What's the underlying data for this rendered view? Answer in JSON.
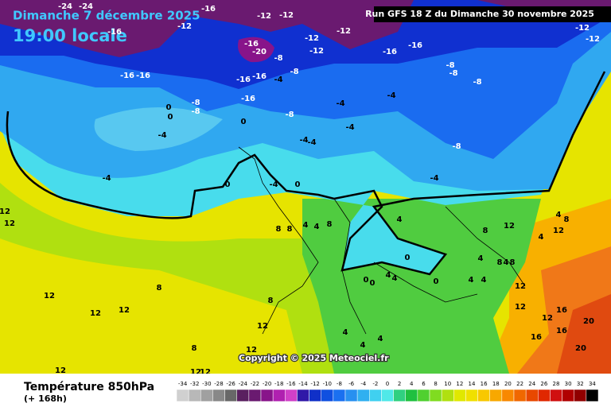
{
  "header": {
    "title": "Dimanche 7 décembre 2025",
    "time": "19:00 locale",
    "run": "Run GFS 18 Z du Dimanche 30 novembre 2025"
  },
  "footer": {
    "title": "Température 850hPa",
    "subtitle": "(+ 168h)",
    "copyright": "Copyright © 2025 Meteociel.fr"
  },
  "legend": {
    "labels": [
      -34,
      -32,
      -30,
      -28,
      -26,
      -24,
      -22,
      -20,
      -18,
      -16,
      -14,
      -12,
      -10,
      -8,
      -6,
      -4,
      -2,
      0,
      2,
      4,
      6,
      8,
      10,
      12,
      14,
      16,
      18,
      20,
      22,
      24,
      26,
      28,
      30,
      32,
      34
    ],
    "colors": [
      "#d0d0d0",
      "#b8b8b8",
      "#a0a0a0",
      "#888888",
      "#686868",
      "#5a2060",
      "#6a1a70",
      "#88148a",
      "#b020b0",
      "#d040c8",
      "#3018a8",
      "#1030c8",
      "#1050e0",
      "#1a70f0",
      "#2890f0",
      "#30b0f0",
      "#40d0f0",
      "#50e8e8",
      "#30d080",
      "#20c040",
      "#50d030",
      "#80dc20",
      "#b0e010",
      "#e0e800",
      "#f0e000",
      "#f8c800",
      "#f8a800",
      "#f88800",
      "#f06800",
      "#e84800",
      "#e02800",
      "#d01010",
      "#b00000",
      "#900000",
      "#000000"
    ]
  },
  "contour_labels": [
    "-24",
    "-24",
    "-16",
    "-12",
    "-16",
    "-12",
    "-12",
    "-12",
    "-16",
    "-20",
    "-12",
    "-12",
    "-8",
    "-8",
    "-16",
    "-16",
    "-12",
    "-12",
    "-8",
    "-8",
    "-8",
    "-16",
    "-16",
    "-16",
    "-16",
    "-4",
    "-8",
    "-8",
    "-16",
    "-4",
    "-4",
    "-8",
    "0",
    "0",
    "0",
    "-4",
    "-4",
    "-4",
    "-4",
    "-8",
    "-4",
    "-4",
    "0",
    "0",
    "-4",
    "12",
    "12",
    "8",
    "8",
    "4",
    "4",
    "8",
    "4",
    "8",
    "12",
    "4",
    "8",
    "4",
    "12",
    "4",
    "8",
    "4",
    "8",
    "0",
    "0",
    "0",
    "4",
    "4",
    "0",
    "4",
    "4",
    "12",
    "8",
    "12",
    "12",
    "12",
    "8",
    "12",
    "4",
    "4",
    "12",
    "16",
    "16",
    "20",
    "20",
    "12",
    "16",
    "8",
    "12",
    "12",
    "12",
    "12",
    "4"
  ]
}
